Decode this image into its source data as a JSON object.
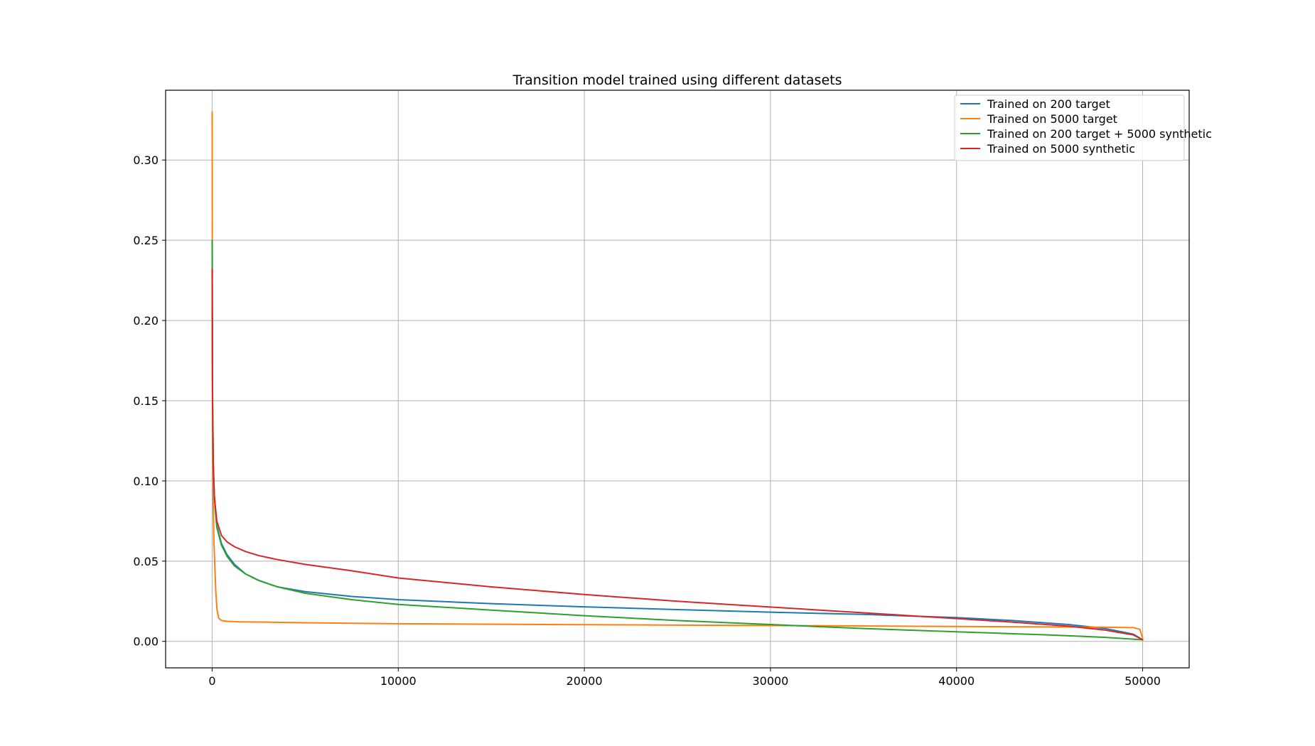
{
  "chart_data": {
    "type": "line",
    "title": "Transition model trained using different datasets",
    "xlabel": "",
    "ylabel": "",
    "xlim": [
      -2500,
      52500
    ],
    "ylim": [
      -0.0165,
      0.3435
    ],
    "xticks": [
      0,
      10000,
      20000,
      30000,
      40000,
      50000
    ],
    "xtick_labels": [
      "0",
      "10000",
      "20000",
      "30000",
      "40000",
      "50000"
    ],
    "yticks": [
      0.0,
      0.05,
      0.1,
      0.15,
      0.2,
      0.25,
      0.3
    ],
    "ytick_labels": [
      "0.00",
      "0.05",
      "0.10",
      "0.15",
      "0.20",
      "0.25",
      "0.30"
    ],
    "grid": true,
    "legend_position": "top-right",
    "series": [
      {
        "name": "Trained on 200 target",
        "color": "#1f77b4",
        "points": [
          [
            0,
            0.23
          ],
          [
            20,
            0.15
          ],
          [
            60,
            0.11
          ],
          [
            120,
            0.09
          ],
          [
            250,
            0.072
          ],
          [
            500,
            0.061
          ],
          [
            800,
            0.054
          ],
          [
            1200,
            0.048
          ],
          [
            1800,
            0.042
          ],
          [
            2500,
            0.038
          ],
          [
            3500,
            0.034
          ],
          [
            5000,
            0.031
          ],
          [
            7500,
            0.028
          ],
          [
            10000,
            0.026
          ],
          [
            15000,
            0.0235
          ],
          [
            20000,
            0.0215
          ],
          [
            25000,
            0.0198
          ],
          [
            30000,
            0.0182
          ],
          [
            35000,
            0.0168
          ],
          [
            40000,
            0.0148
          ],
          [
            43000,
            0.013
          ],
          [
            46000,
            0.0105
          ],
          [
            48000,
            0.008
          ],
          [
            49500,
            0.0045
          ],
          [
            50000,
            0.001
          ]
        ]
      },
      {
        "name": "Trained on 5000 target",
        "color": "#ff7f0e",
        "points": [
          [
            0,
            0.33
          ],
          [
            8,
            0.25
          ],
          [
            20,
            0.15
          ],
          [
            50,
            0.09
          ],
          [
            100,
            0.06
          ],
          [
            150,
            0.045
          ],
          [
            200,
            0.03
          ],
          [
            260,
            0.02
          ],
          [
            350,
            0.0145
          ],
          [
            500,
            0.013
          ],
          [
            800,
            0.0125
          ],
          [
            1500,
            0.0122
          ],
          [
            3000,
            0.012
          ],
          [
            5000,
            0.0116
          ],
          [
            10000,
            0.011
          ],
          [
            20000,
            0.0104
          ],
          [
            30000,
            0.0099
          ],
          [
            40000,
            0.0093
          ],
          [
            45000,
            0.009
          ],
          [
            48000,
            0.0088
          ],
          [
            49500,
            0.0086
          ],
          [
            49850,
            0.0075
          ],
          [
            50000,
            0.002
          ]
        ]
      },
      {
        "name": "Trained on 200 target + 5000 synthetic",
        "color": "#2ca02c",
        "points": [
          [
            0,
            0.25
          ],
          [
            20,
            0.16
          ],
          [
            60,
            0.11
          ],
          [
            120,
            0.09
          ],
          [
            250,
            0.071
          ],
          [
            500,
            0.06
          ],
          [
            800,
            0.053
          ],
          [
            1200,
            0.047
          ],
          [
            1800,
            0.042
          ],
          [
            2500,
            0.038
          ],
          [
            3500,
            0.034
          ],
          [
            5000,
            0.03
          ],
          [
            7500,
            0.026
          ],
          [
            10000,
            0.023
          ],
          [
            15000,
            0.0195
          ],
          [
            20000,
            0.016
          ],
          [
            25000,
            0.013
          ],
          [
            30000,
            0.0105
          ],
          [
            35000,
            0.008
          ],
          [
            40000,
            0.006
          ],
          [
            45000,
            0.004
          ],
          [
            48000,
            0.0025
          ],
          [
            50000,
            0.001
          ]
        ]
      },
      {
        "name": "Trained on 5000 synthetic",
        "color": "#d62728",
        "points": [
          [
            0,
            0.232
          ],
          [
            20,
            0.15
          ],
          [
            60,
            0.11
          ],
          [
            120,
            0.09
          ],
          [
            250,
            0.075
          ],
          [
            500,
            0.066
          ],
          [
            800,
            0.062
          ],
          [
            1200,
            0.059
          ],
          [
            1800,
            0.056
          ],
          [
            2500,
            0.0535
          ],
          [
            3500,
            0.051
          ],
          [
            5000,
            0.048
          ],
          [
            7500,
            0.044
          ],
          [
            10000,
            0.0395
          ],
          [
            15000,
            0.034
          ],
          [
            20000,
            0.0292
          ],
          [
            25000,
            0.025
          ],
          [
            30000,
            0.0214
          ],
          [
            35000,
            0.0178
          ],
          [
            40000,
            0.0142
          ],
          [
            43000,
            0.012
          ],
          [
            46000,
            0.0095
          ],
          [
            48000,
            0.007
          ],
          [
            49500,
            0.004
          ],
          [
            50000,
            0.001
          ]
        ]
      }
    ]
  }
}
